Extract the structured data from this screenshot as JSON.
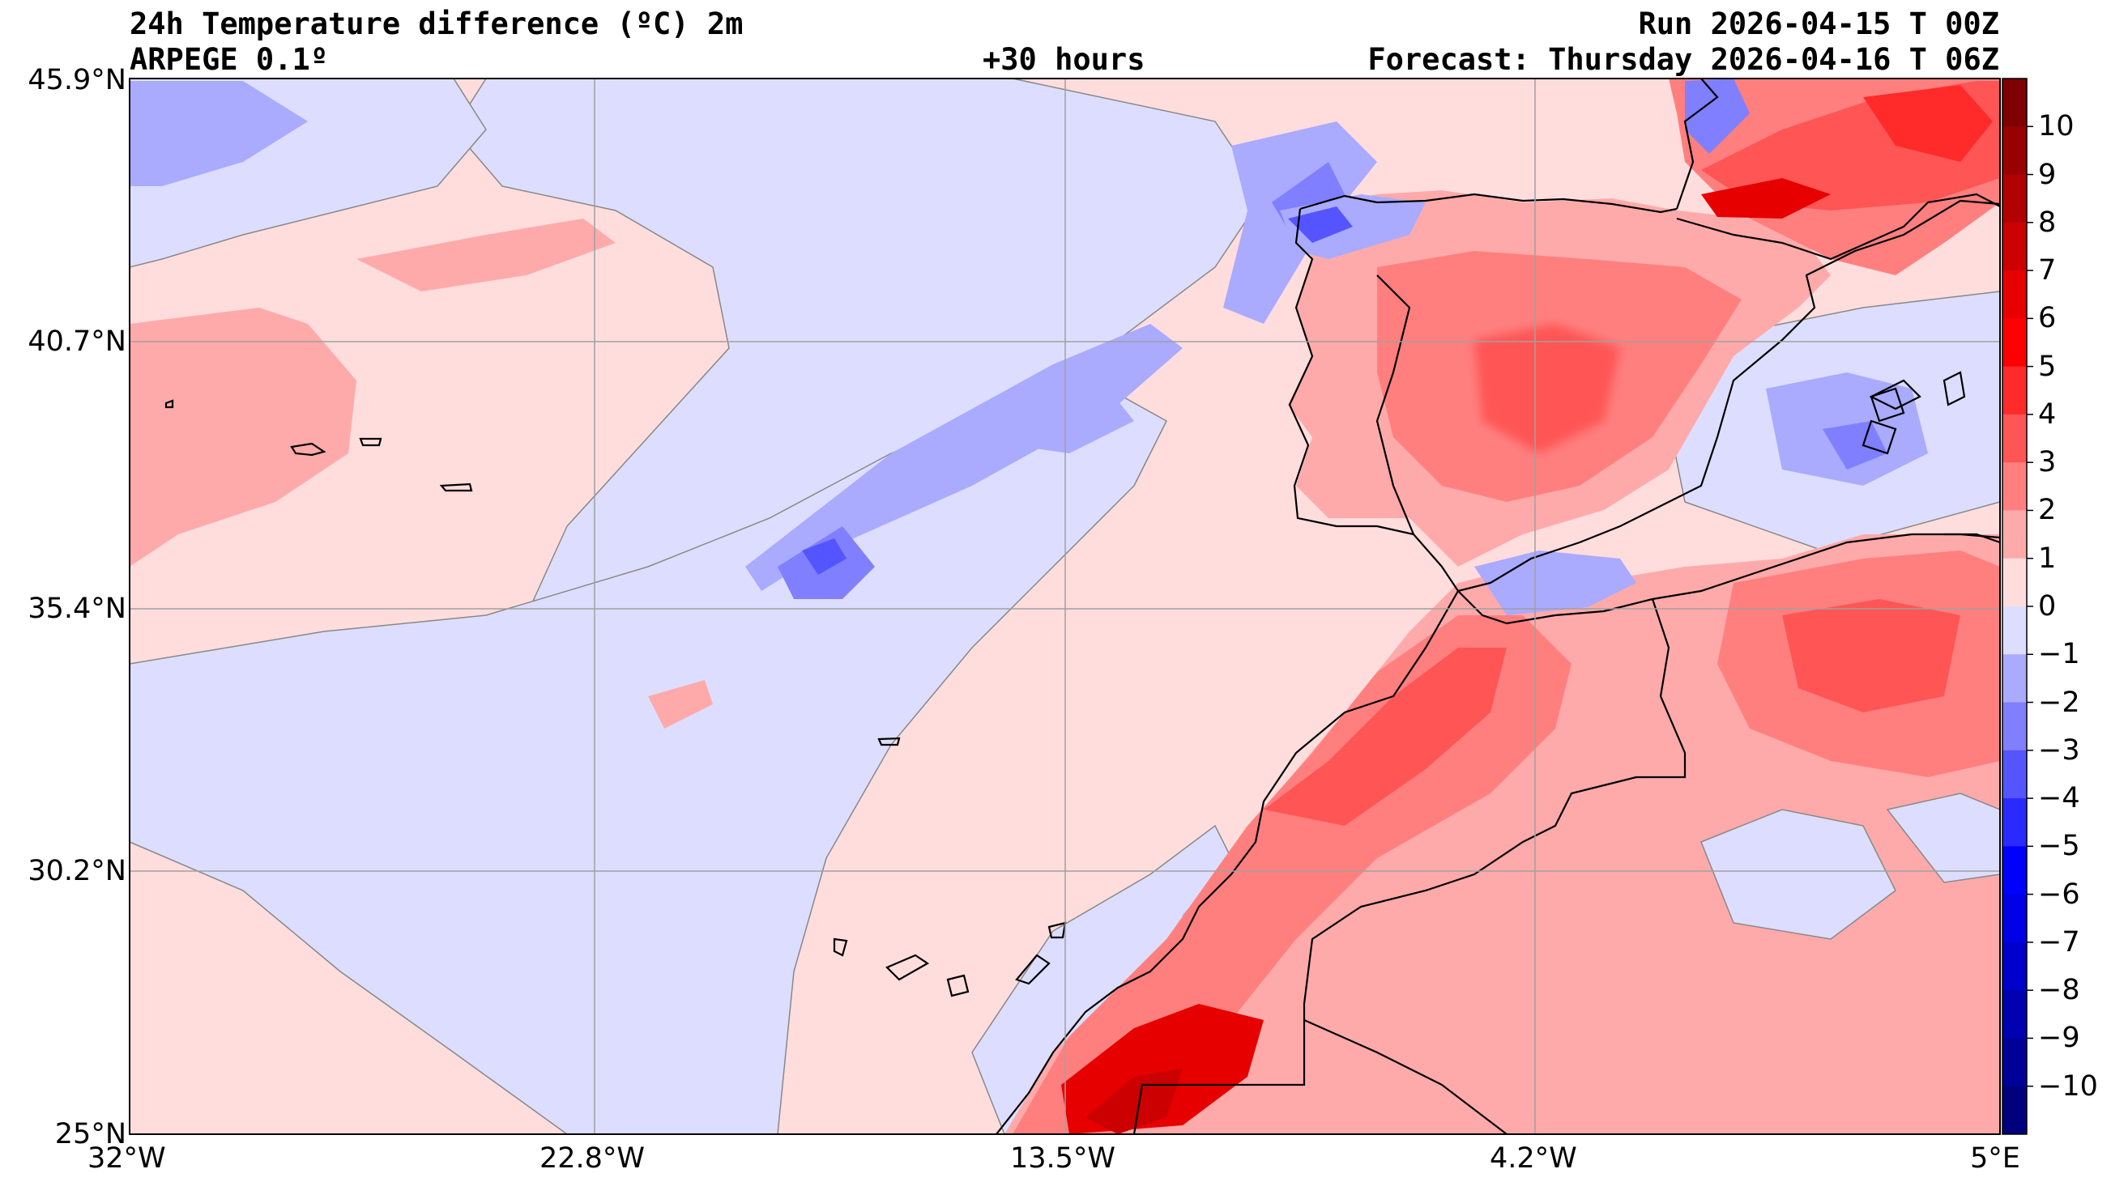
{
  "header": {
    "title": "24h Temperature difference (ºC) 2m",
    "model": "ARPEGE 0.1º",
    "lead": "+30 hours",
    "run": "Run 2026-04-15 T 00Z",
    "forecast": "Forecast: Thursday 2026-04-16 T 06Z"
  },
  "axes": {
    "lat_labels": [
      "45.9°N",
      "40.7°N",
      "35.4°N",
      "30.2°N",
      "25°N"
    ],
    "lon_labels": [
      "32°W",
      "22.8°W",
      "13.5°W",
      "4.2°W",
      "5°E"
    ],
    "lat_values": [
      45.9,
      40.7,
      35.4,
      30.2,
      25.0
    ],
    "lon_values": [
      -32,
      -22.8,
      -13.5,
      -4.2,
      5
    ],
    "lon_range": [
      -32,
      5
    ],
    "lat_range": [
      25,
      45.9
    ],
    "grid": true
  },
  "colorbar": {
    "ticks": [
      "10",
      "9",
      "8",
      "7",
      "6",
      "5",
      "4",
      "3",
      "2",
      "1",
      "0",
      "−1",
      "−2",
      "−3",
      "−4",
      "−5",
      "−6",
      "−7",
      "−8",
      "−9",
      "−10"
    ],
    "levels_top_to_bottom": [
      11,
      10,
      9,
      8,
      7,
      6,
      5,
      4,
      3,
      2,
      1,
      0,
      -1,
      -2,
      -3,
      -4,
      -5,
      -6,
      -7,
      -8,
      -9,
      -10,
      -11
    ],
    "colors_top_to_bottom": [
      "#7f0000",
      "#990000",
      "#b20000",
      "#cc0000",
      "#e60000",
      "#ff0000",
      "#ff2a2a",
      "#ff5555",
      "#ff7f7f",
      "#ffaaaa",
      "#ffdddd",
      "#dddeff",
      "#aaaaff",
      "#7f7fff",
      "#5555ff",
      "#2a2aff",
      "#0000ff",
      "#0000e6",
      "#0000cc",
      "#0000b2",
      "#000099",
      "#00007f"
    ]
  },
  "map_colors": {
    "light_red": "#ffdddd",
    "red1": "#ffaaaa",
    "red2": "#ff7f7f",
    "red3": "#ff5555",
    "red4": "#ff2a2a",
    "red5": "#e60000",
    "red6": "#cc0000",
    "light_blue": "#dddeff",
    "blue1": "#aaaaff",
    "blue2": "#7f7fff",
    "blue3": "#5555ff",
    "grid": "#a0a0a0",
    "coast": "#000000"
  }
}
